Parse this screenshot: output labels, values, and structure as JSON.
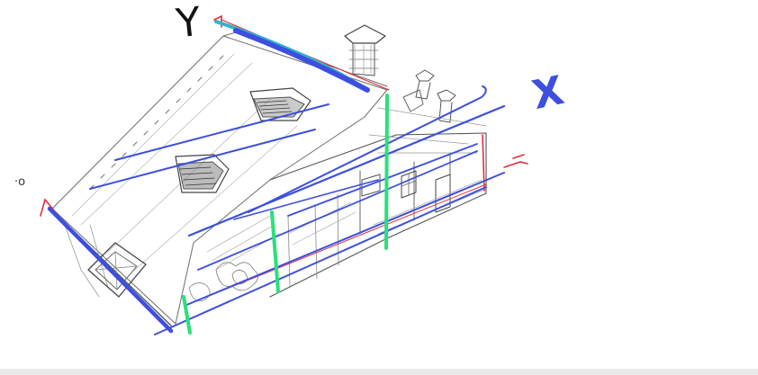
{
  "axis_labels": {
    "y": "Y",
    "x": "X",
    "origin": "·o"
  },
  "colors": {
    "pencil": "#6d6d6d",
    "pencil_dark": "#444444",
    "blue": "#3c4fe0",
    "cyan": "#2fb7c8",
    "green": "#29e07a",
    "red": "#e0303a",
    "background": "#ffffff",
    "bottom_bar": "#e9e9e9"
  }
}
